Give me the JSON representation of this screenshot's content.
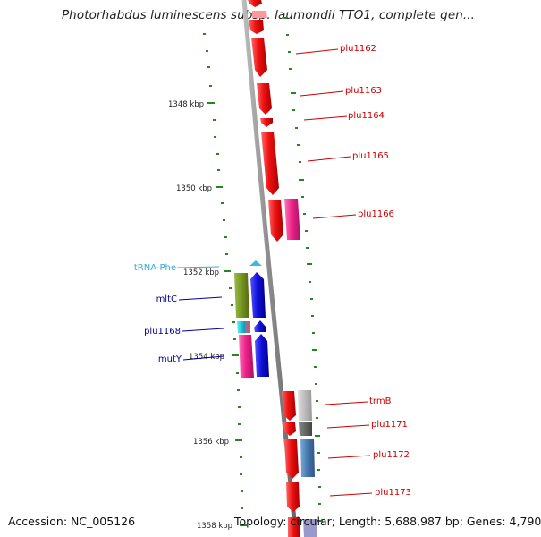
{
  "header": {
    "title": "Photorhabdus luminescens subsp. laumondii TTO1, complete gen..."
  },
  "footer": {
    "accession": "Accession: NC_005126",
    "stats": "Topology: circular; Length: 5,688,987 bp; Genes: 4,790"
  },
  "ruler": {
    "unit": "kbp",
    "ticks": [
      {
        "label": "1348 kbp"
      },
      {
        "label": "1350 kbp"
      },
      {
        "label": "1352 kbp"
      },
      {
        "label": "1354 kbp"
      },
      {
        "label": "1356 kbp"
      },
      {
        "label": "1358 kbp"
      }
    ]
  },
  "genes_right": [
    {
      "label": "plu1162",
      "strand": "forward"
    },
    {
      "label": "plu1163",
      "strand": "forward"
    },
    {
      "label": "plu1164",
      "strand": "forward"
    },
    {
      "label": "plu1165",
      "strand": "forward"
    },
    {
      "label": "plu1166",
      "strand": "forward"
    },
    {
      "label": "trmB",
      "strand": "forward"
    },
    {
      "label": "plu1171",
      "strand": "forward"
    },
    {
      "label": "plu1172",
      "strand": "forward"
    },
    {
      "label": "plu1173",
      "strand": "forward"
    }
  ],
  "genes_left": [
    {
      "label": "tRNA-Phe",
      "kind": "tRNA"
    },
    {
      "label": "mltC",
      "kind": "gene"
    },
    {
      "label": "plu1168",
      "kind": "gene"
    },
    {
      "label": "mutY",
      "kind": "gene"
    }
  ],
  "colors": {
    "cds_red": "#ee1111",
    "cds_pink": "#ee2288",
    "cds_blue": "#1111dd",
    "cds_olive": "#779922",
    "cds_cyan": "#22ccdd",
    "cds_grey": "#bbbbbb",
    "cds_darkgrey": "#666666",
    "cds_steelblue": "#4477aa",
    "label_red": "#cc0000",
    "label_blue": "#000099",
    "label_cyan": "#33aadd",
    "ruler_green": "#228822"
  }
}
